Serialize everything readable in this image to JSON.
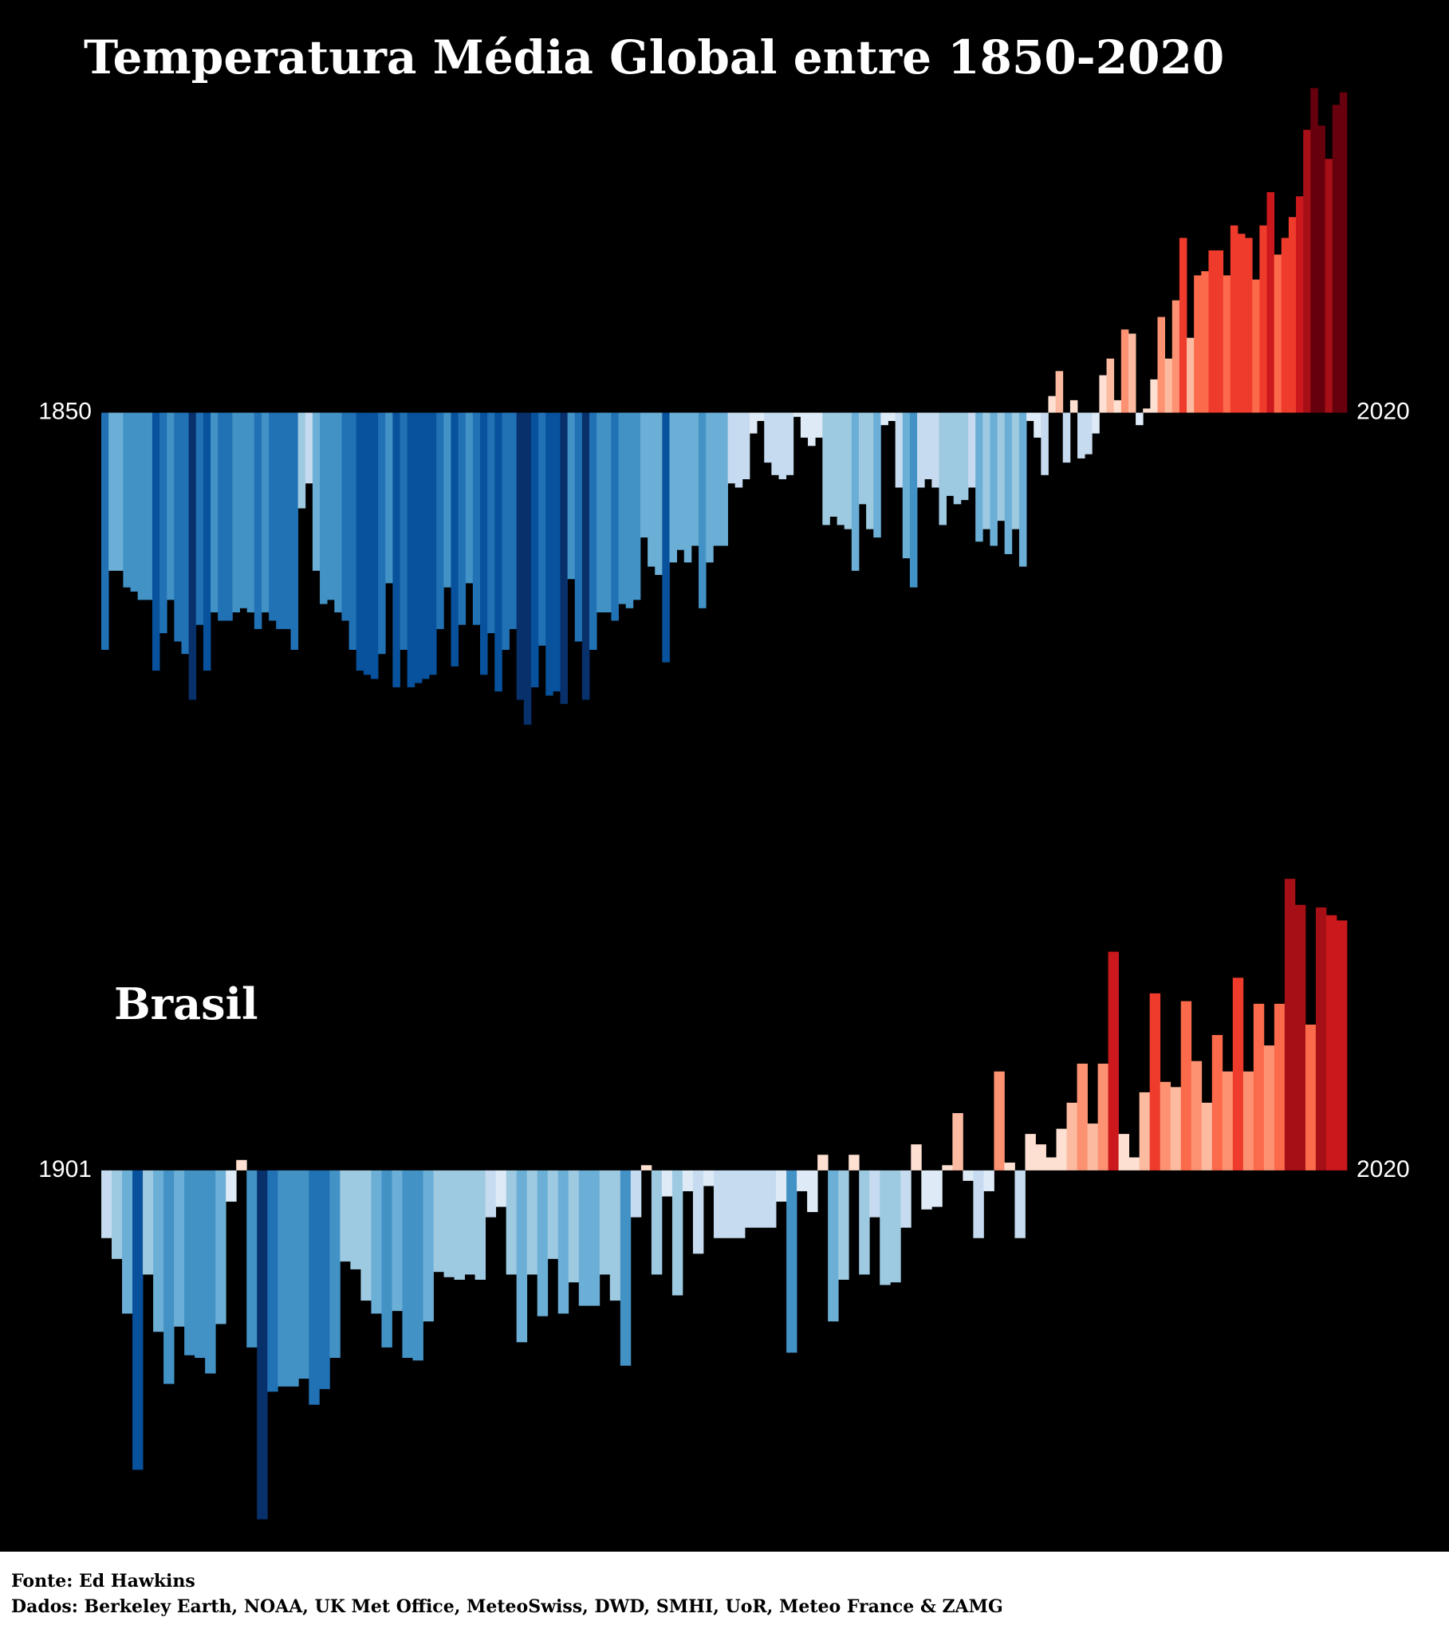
{
  "chart_data": [
    {
      "type": "stripes-bar",
      "title": "Temperatura Média Global entre 1850-2020",
      "xlim": [
        1850,
        2020
      ],
      "xticks": [
        1850,
        2020
      ],
      "ylim": [
        -0.8,
        0.85
      ],
      "palette": [
        "#08306b",
        "#08519c",
        "#2171b5",
        "#4292c6",
        "#6baed6",
        "#9ecae1",
        "#c6dbef",
        "#deebf7",
        "#fee0d2",
        "#fcbba1",
        "#fc9272",
        "#fb6a4a",
        "#ef3b2c",
        "#cb181d",
        "#a50f15",
        "#67000d"
      ],
      "values": [
        -0.57,
        -0.38,
        -0.38,
        -0.42,
        -0.43,
        -0.45,
        -0.45,
        -0.62,
        -0.53,
        -0.45,
        -0.55,
        -0.58,
        -0.69,
        -0.51,
        -0.62,
        -0.48,
        -0.5,
        -0.5,
        -0.48,
        -0.47,
        -0.48,
        -0.52,
        -0.48,
        -0.5,
        -0.52,
        -0.52,
        -0.57,
        -0.23,
        -0.17,
        -0.38,
        -0.46,
        -0.45,
        -0.48,
        -0.5,
        -0.57,
        -0.62,
        -0.63,
        -0.64,
        -0.58,
        -0.41,
        -0.66,
        -0.57,
        -0.66,
        -0.65,
        -0.64,
        -0.63,
        -0.52,
        -0.42,
        -0.61,
        -0.51,
        -0.41,
        -0.51,
        -0.63,
        -0.53,
        -0.67,
        -0.57,
        -0.52,
        -0.69,
        -0.75,
        -0.66,
        -0.56,
        -0.68,
        -0.67,
        -0.7,
        -0.4,
        -0.55,
        -0.69,
        -0.57,
        -0.48,
        -0.48,
        -0.5,
        -0.46,
        -0.47,
        -0.45,
        -0.3,
        -0.37,
        -0.39,
        -0.6,
        -0.36,
        -0.33,
        -0.36,
        -0.32,
        -0.47,
        -0.36,
        -0.32,
        -0.32,
        -0.17,
        -0.18,
        -0.16,
        -0.05,
        -0.02,
        -0.12,
        -0.15,
        -0.16,
        -0.15,
        -0.01,
        -0.06,
        -0.08,
        -0.06,
        -0.27,
        -0.25,
        -0.27,
        -0.28,
        -0.38,
        -0.22,
        -0.28,
        -0.3,
        -0.03,
        -0.02,
        -0.18,
        -0.35,
        -0.42,
        -0.18,
        -0.16,
        -0.18,
        -0.27,
        -0.2,
        -0.22,
        -0.21,
        -0.18,
        -0.31,
        -0.28,
        -0.32,
        -0.26,
        -0.34,
        -0.28,
        -0.37,
        -0.02,
        -0.06,
        -0.15,
        0.04,
        0.1,
        -0.12,
        0.03,
        -0.11,
        -0.1,
        -0.05,
        0.09,
        0.13,
        0.03,
        0.2,
        0.19,
        -0.03,
        0.01,
        0.08,
        0.23,
        0.13,
        0.27,
        0.42,
        0.18,
        0.33,
        0.34,
        0.39,
        0.39,
        0.33,
        0.45,
        0.43,
        0.42,
        0.32,
        0.45,
        0.53,
        0.38,
        0.42,
        0.47,
        0.52,
        0.68,
        0.78,
        0.69,
        0.61,
        0.74,
        0.77
      ]
    },
    {
      "type": "stripes-bar",
      "title": "Brasil",
      "xlim": [
        1901,
        2020
      ],
      "xticks": [
        1901,
        2020
      ],
      "ylim": [
        -1.4,
        1.2
      ],
      "palette": [
        "#08306b",
        "#08519c",
        "#2171b5",
        "#4292c6",
        "#6baed6",
        "#9ecae1",
        "#c6dbef",
        "#deebf7",
        "#fee0d2",
        "#fcbba1",
        "#fc9272",
        "#fb6a4a",
        "#ef3b2c",
        "#cb181d",
        "#a50f15",
        "#67000d"
      ],
      "values": [
        -0.26,
        -0.34,
        -0.55,
        -1.15,
        -0.4,
        -0.62,
        -0.82,
        -0.6,
        -0.71,
        -0.72,
        -0.78,
        -0.59,
        -0.12,
        0.04,
        -0.68,
        -1.34,
        -0.85,
        -0.83,
        -0.83,
        -0.8,
        -0.9,
        -0.84,
        -0.72,
        -0.35,
        -0.38,
        -0.5,
        -0.55,
        -0.68,
        -0.54,
        -0.72,
        -0.73,
        -0.58,
        -0.39,
        -0.41,
        -0.42,
        -0.4,
        -0.42,
        -0.18,
        -0.14,
        -0.4,
        -0.66,
        -0.4,
        -0.56,
        -0.34,
        -0.55,
        -0.43,
        -0.52,
        -0.52,
        -0.4,
        -0.5,
        -0.75,
        -0.18,
        0.02,
        -0.4,
        -0.1,
        -0.48,
        -0.08,
        -0.32,
        -0.06,
        -0.26,
        -0.26,
        -0.26,
        -0.22,
        -0.22,
        -0.22,
        -0.12,
        -0.7,
        -0.08,
        -0.16,
        0.06,
        -0.58,
        -0.42,
        0.06,
        -0.4,
        -0.18,
        -0.44,
        -0.43,
        -0.22,
        0.1,
        -0.15,
        -0.14,
        0.02,
        0.22,
        -0.04,
        -0.26,
        -0.08,
        0.38,
        0.03,
        -0.26,
        0.14,
        0.1,
        0.05,
        0.16,
        0.26,
        0.41,
        0.18,
        0.41,
        0.84,
        0.14,
        0.05,
        0.3,
        0.68,
        0.34,
        0.32,
        0.65,
        0.42,
        0.26,
        0.52,
        0.38,
        0.74,
        0.38,
        0.64,
        0.48,
        0.64,
        1.12,
        1.02,
        0.56,
        1.01,
        0.98,
        0.96
      ]
    }
  ],
  "footer": {
    "source": "Fonte:  Ed Hawkins",
    "data": "Dados: Berkeley Earth, NOAA, UK Met Office, MeteoSwiss, DWD, SMHI, UoR, Meteo France & ZAMG"
  }
}
